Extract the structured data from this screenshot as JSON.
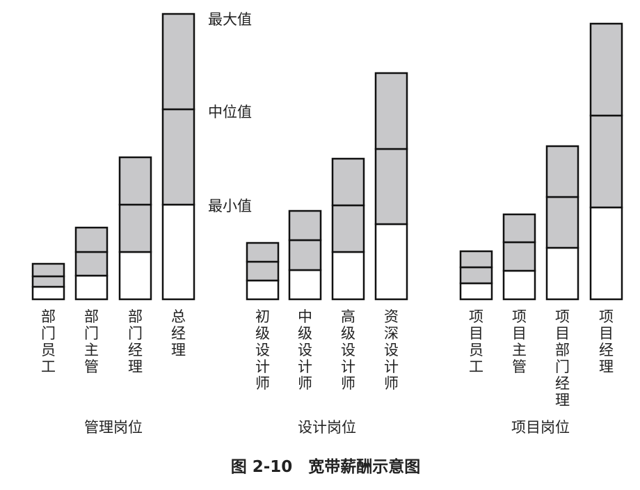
{
  "chart_data": {
    "type": "bar",
    "caption": "图 2-10　宽带薪酬示意图",
    "annotations": [
      "最大值",
      "中位值",
      "最小值"
    ],
    "groups": [
      {
        "name": "管理岗位",
        "bars": [
          {
            "label": "部门员工",
            "min": 18,
            "mid": 33,
            "max": 51
          },
          {
            "label": "部门主管",
            "min": 34,
            "mid": 68,
            "max": 103
          },
          {
            "label": "部门经理",
            "min": 68,
            "mid": 136,
            "max": 204
          },
          {
            "label": "总经理",
            "min": 136,
            "mid": 273,
            "max": 410
          }
        ]
      },
      {
        "name": "设计岗位",
        "bars": [
          {
            "label": "初级设计师",
            "min": 27,
            "mid": 54,
            "max": 81
          },
          {
            "label": "中级设计师",
            "min": 42,
            "mid": 85,
            "max": 127
          },
          {
            "label": "高级设计师",
            "min": 68,
            "mid": 135,
            "max": 202
          },
          {
            "label": "资深设计师",
            "min": 108,
            "mid": 216,
            "max": 325
          }
        ]
      },
      {
        "name": "项目岗位",
        "bars": [
          {
            "label": "项目员工",
            "min": 23,
            "mid": 46,
            "max": 69
          },
          {
            "label": "项目主管",
            "min": 41,
            "mid": 82,
            "max": 122
          },
          {
            "label": "项目部门经理",
            "min": 74,
            "mid": 147,
            "max": 220
          },
          {
            "label": "项目经理",
            "min": 132,
            "mid": 264,
            "max": 396
          }
        ]
      }
    ]
  }
}
